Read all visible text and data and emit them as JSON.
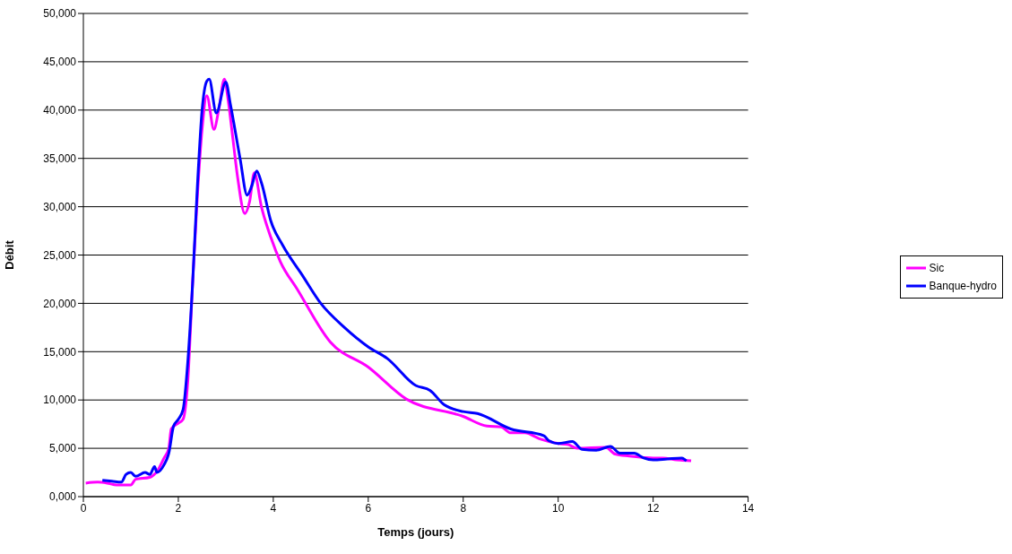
{
  "chart_data": {
    "type": "line",
    "xlabel": "Temps (jours)",
    "ylabel": "Débit",
    "xlim": [
      0,
      14
    ],
    "xticks": [
      0,
      2,
      4,
      6,
      8,
      10,
      12,
      14
    ],
    "ylim": [
      0,
      50000
    ],
    "yticks": [
      {
        "value": 0,
        "label": "0,000"
      },
      {
        "value": 5000,
        "label": "5,000"
      },
      {
        "value": 10000,
        "label": "10,000"
      },
      {
        "value": 15000,
        "label": "15,000"
      },
      {
        "value": 20000,
        "label": "20,000"
      },
      {
        "value": 25000,
        "label": "25,000"
      },
      {
        "value": 30000,
        "label": "30,000"
      },
      {
        "value": 35000,
        "label": "35,000"
      },
      {
        "value": 40000,
        "label": "40,000"
      },
      {
        "value": 45000,
        "label": "45,000"
      },
      {
        "value": 50000,
        "label": "50,000"
      }
    ],
    "grid": "y",
    "legend": "right",
    "marker": "none",
    "line_style": "solid",
    "series": [
      {
        "name": "Sic",
        "color": "#ff00ff",
        "x": [
          0.05,
          0.3,
          0.5,
          0.7,
          1.0,
          1.1,
          1.4,
          1.55,
          1.7,
          1.8,
          1.85,
          2.0,
          2.1,
          2.2,
          2.3,
          2.4,
          2.5,
          2.6,
          2.75,
          2.85,
          2.97,
          3.05,
          3.15,
          3.25,
          3.4,
          3.5,
          3.6,
          3.75,
          3.95,
          4.15,
          4.5,
          5.2,
          6.0,
          6.8,
          8.0,
          8.5,
          8.8,
          9.0,
          9.3,
          9.6,
          10.0,
          10.2,
          10.4,
          11.0,
          11.2,
          11.5,
          12.0,
          12.2,
          12.5,
          12.8
        ],
        "values": [
          1400,
          1500,
          1400,
          1200,
          1200,
          1800,
          2000,
          2600,
          4000,
          5000,
          7000,
          7600,
          8000,
          12000,
          22000,
          31000,
          38000,
          41500,
          38000,
          40000,
          43200,
          41000,
          37000,
          33000,
          29300,
          30500,
          33500,
          30000,
          26800,
          24300,
          21500,
          16000,
          13400,
          10100,
          8300,
          7300,
          7200,
          6600,
          6600,
          6000,
          5500,
          5400,
          5000,
          5100,
          4400,
          4200,
          4000,
          4000,
          3800,
          3700
        ]
      },
      {
        "name": "Banque-hydro",
        "color": "#0000ff",
        "x": [
          0.4,
          0.6,
          0.8,
          0.9,
          1.0,
          1.1,
          1.3,
          1.4,
          1.5,
          1.55,
          1.7,
          1.8,
          1.9,
          2.0,
          2.1,
          2.2,
          2.3,
          2.4,
          2.5,
          2.6,
          2.65,
          2.8,
          3.0,
          3.1,
          3.3,
          3.45,
          3.55,
          3.65,
          3.75,
          3.95,
          4.2,
          4.6,
          5.0,
          5.5,
          6.0,
          6.4,
          7.0,
          7.3,
          7.6,
          8.0,
          8.3,
          9.0,
          9.7,
          9.8,
          10.0,
          10.3,
          10.5,
          10.8,
          11.1,
          11.3,
          11.6,
          11.8,
          12.0,
          12.3,
          12.6,
          12.7
        ],
        "values": [
          1700,
          1600,
          1500,
          2300,
          2500,
          2100,
          2500,
          2300,
          3100,
          2500,
          3300,
          4500,
          7300,
          8000,
          9000,
          14000,
          22000,
          32000,
          40000,
          43000,
          43200,
          39700,
          42900,
          40500,
          35000,
          31200,
          32200,
          33700,
          32500,
          28500,
          26000,
          23000,
          20000,
          17500,
          15500,
          14300,
          11500,
          11000,
          9500,
          8800,
          8600,
          7000,
          6300,
          5800,
          5500,
          5700,
          4900,
          4800,
          5200,
          4500,
          4500,
          4000,
          3800,
          3900,
          4000,
          3700
        ]
      }
    ]
  }
}
